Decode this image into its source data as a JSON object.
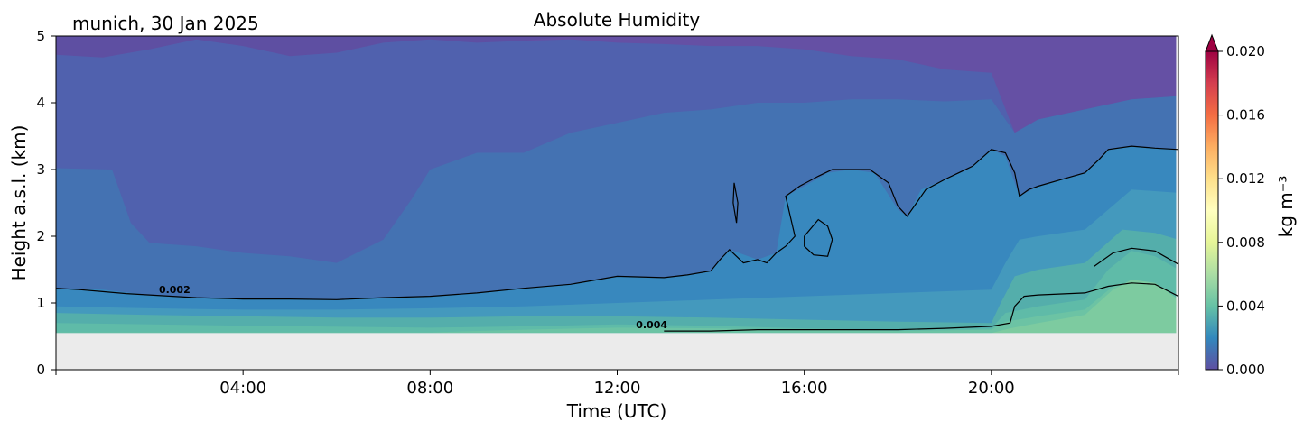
{
  "chart_data": {
    "type": "heatmap",
    "location_date": "munich, 30 Jan 2025",
    "title": "Absolute Humidity",
    "xlabel": "Time (UTC)",
    "ylabel": "Height a.s.l. (km)",
    "x_unit": "hours UTC",
    "xlim": [
      0,
      24
    ],
    "ylim": [
      0,
      5
    ],
    "x_ticks": [
      {
        "value": 4,
        "label": "04:00"
      },
      {
        "value": 8,
        "label": "08:00"
      },
      {
        "value": 12,
        "label": "12:00"
      },
      {
        "value": 16,
        "label": "16:00"
      },
      {
        "value": 20,
        "label": "20:00"
      }
    ],
    "y_ticks": [
      0,
      1,
      2,
      3,
      4,
      5
    ],
    "no_data_below_km": 0.55,
    "colorbar": {
      "label": "kg m⁻³",
      "range": [
        0.0,
        0.02
      ],
      "extend": "max",
      "ticks": [
        "0.000",
        "0.004",
        "0.008",
        "0.012",
        "0.016",
        "0.020"
      ],
      "colors": [
        "#5e4fa2",
        "#3288bd",
        "#66c2a5",
        "#abdda4",
        "#e6f598",
        "#ffffbf",
        "#fee08b",
        "#fdae61",
        "#f46d43",
        "#d53e4f",
        "#9e0142"
      ]
    },
    "contour_labels": [
      {
        "x": 2.2,
        "y": 1.15,
        "text": "0.002"
      },
      {
        "x": 12.4,
        "y": 0.62,
        "text": "0.004"
      }
    ],
    "layers": [
      {
        "value": 0.0005,
        "color": "#6550a4",
        "top": [
          [
            0,
            4.72
          ],
          [
            1,
            4.68
          ],
          [
            2,
            4.8
          ],
          [
            3,
            4.95
          ],
          [
            4,
            4.85
          ],
          [
            5,
            4.7
          ],
          [
            6,
            4.75
          ],
          [
            7,
            4.9
          ],
          [
            8,
            4.95
          ],
          [
            9,
            4.9
          ],
          [
            10,
            4.93
          ],
          [
            11,
            5.0
          ],
          [
            24,
            5.0
          ]
        ]
      },
      {
        "value": 0.001,
        "color": "#5061ae",
        "top": [
          [
            0,
            4.72
          ],
          [
            1,
            4.68
          ],
          [
            2,
            4.8
          ],
          [
            3,
            4.95
          ],
          [
            4,
            4.85
          ],
          [
            5,
            4.7
          ],
          [
            6,
            4.75
          ],
          [
            7,
            4.9
          ],
          [
            8,
            4.95
          ],
          [
            9,
            4.9
          ],
          [
            10,
            4.93
          ],
          [
            11,
            4.95
          ],
          [
            12,
            4.9
          ],
          [
            13,
            4.88
          ],
          [
            14,
            4.85
          ],
          [
            15,
            4.85
          ],
          [
            16,
            4.8
          ],
          [
            17,
            4.7
          ],
          [
            18,
            4.65
          ],
          [
            19,
            4.5
          ],
          [
            20,
            4.45
          ],
          [
            20.5,
            3.55
          ],
          [
            21,
            3.75
          ],
          [
            22,
            3.9
          ],
          [
            23,
            4.05
          ],
          [
            24,
            4.1
          ]
        ]
      },
      {
        "value": 0.0015,
        "color": "#4472b2",
        "top": [
          [
            0,
            3.02
          ],
          [
            1.2,
            3.0
          ],
          [
            1.6,
            2.2
          ],
          [
            2,
            1.9
          ],
          [
            3,
            1.85
          ],
          [
            4,
            1.75
          ],
          [
            5,
            1.7
          ],
          [
            6,
            1.6
          ],
          [
            7,
            1.95
          ],
          [
            7.6,
            2.55
          ],
          [
            8,
            3.0
          ],
          [
            9,
            3.25
          ],
          [
            10,
            3.25
          ],
          [
            11,
            3.55
          ],
          [
            12,
            3.7
          ],
          [
            13,
            3.85
          ],
          [
            14,
            3.9
          ],
          [
            15,
            4.0
          ],
          [
            16,
            4.0
          ],
          [
            17,
            4.05
          ],
          [
            18,
            4.05
          ],
          [
            19,
            4.02
          ],
          [
            20,
            4.05
          ],
          [
            20.5,
            3.55
          ],
          [
            21,
            3.75
          ],
          [
            22,
            3.9
          ],
          [
            23,
            4.05
          ],
          [
            24,
            4.1
          ]
        ]
      },
      {
        "value": 0.002,
        "color": "#3888be",
        "top": [
          [
            0,
            1.22
          ],
          [
            1,
            1.2
          ],
          [
            2,
            1.12
          ],
          [
            3,
            1.08
          ],
          [
            4,
            1.06
          ],
          [
            5,
            1.06
          ],
          [
            6,
            1.05
          ],
          [
            7,
            1.08
          ],
          [
            8,
            1.1
          ],
          [
            9,
            1.15
          ],
          [
            10,
            1.22
          ],
          [
            11,
            1.28
          ],
          [
            12,
            1.4
          ],
          [
            13,
            1.38
          ],
          [
            14,
            1.48
          ],
          [
            14.4,
            1.8
          ],
          [
            15,
            1.65
          ],
          [
            15.4,
            1.75
          ],
          [
            15.6,
            2.6
          ],
          [
            16,
            2.75
          ],
          [
            16.5,
            2.95
          ],
          [
            17,
            3.0
          ],
          [
            17.5,
            2.95
          ],
          [
            18,
            2.4
          ],
          [
            18.2,
            2.3
          ],
          [
            18.5,
            2.7
          ],
          [
            19,
            2.85
          ],
          [
            19.5,
            3.0
          ],
          [
            20,
            3.3
          ],
          [
            20.3,
            3.2
          ],
          [
            20.6,
            2.6
          ],
          [
            21,
            2.75
          ],
          [
            22,
            2.95
          ],
          [
            22.5,
            3.3
          ],
          [
            23,
            3.35
          ],
          [
            24,
            3.3
          ]
        ]
      },
      {
        "value": 0.0025,
        "color": "#4499bd",
        "top": [
          [
            0,
            0.95
          ],
          [
            2,
            0.92
          ],
          [
            4,
            0.9
          ],
          [
            6,
            0.9
          ],
          [
            8,
            0.92
          ],
          [
            10,
            0.95
          ],
          [
            12,
            1.0
          ],
          [
            14,
            1.05
          ],
          [
            16,
            1.1
          ],
          [
            18,
            1.15
          ],
          [
            20,
            1.2
          ],
          [
            20.3,
            1.6
          ],
          [
            20.6,
            1.95
          ],
          [
            21,
            2.0
          ],
          [
            22,
            2.1
          ],
          [
            23,
            2.7
          ],
          [
            24,
            2.65
          ]
        ]
      },
      {
        "value": 0.003,
        "color": "#54aeab",
        "top": [
          [
            0,
            0.85
          ],
          [
            2,
            0.82
          ],
          [
            4,
            0.8
          ],
          [
            6,
            0.78
          ],
          [
            8,
            0.78
          ],
          [
            10,
            0.8
          ],
          [
            12,
            0.8
          ],
          [
            14,
            0.78
          ],
          [
            16,
            0.75
          ],
          [
            18,
            0.72
          ],
          [
            20,
            0.7
          ],
          [
            20.2,
            1.0
          ],
          [
            20.5,
            1.4
          ],
          [
            21,
            1.5
          ],
          [
            22,
            1.6
          ],
          [
            22.8,
            2.1
          ],
          [
            23.5,
            2.05
          ],
          [
            24,
            1.95
          ]
        ]
      },
      {
        "value": 0.0035,
        "color": "#5fbba8",
        "top": [
          [
            0,
            0.7
          ],
          [
            4,
            0.66
          ],
          [
            8,
            0.63
          ],
          [
            10,
            0.65
          ],
          [
            12,
            0.68
          ],
          [
            14,
            0.66
          ],
          [
            16,
            0.62
          ],
          [
            18,
            0.6
          ],
          [
            20,
            0.62
          ],
          [
            20.3,
            0.85
          ],
          [
            21,
            0.95
          ],
          [
            22,
            1.05
          ],
          [
            22.5,
            1.5
          ],
          [
            23,
            1.78
          ],
          [
            23.5,
            1.7
          ],
          [
            24,
            1.5
          ]
        ]
      },
      {
        "value": 0.004,
        "color": "#6cc3a4",
        "top": [
          [
            0,
            0.56
          ],
          [
            8,
            0.56
          ],
          [
            10,
            0.6
          ],
          [
            12,
            0.63
          ],
          [
            14,
            0.62
          ],
          [
            16,
            0.6
          ],
          [
            18,
            0.58
          ],
          [
            20,
            0.6
          ],
          [
            20.3,
            0.72
          ],
          [
            21,
            0.8
          ],
          [
            22,
            0.9
          ],
          [
            22.6,
            1.25
          ],
          [
            23,
            1.32
          ],
          [
            23.5,
            1.3
          ],
          [
            24,
            1.05
          ]
        ]
      },
      {
        "value": 0.0045,
        "color": "#7dcba0",
        "top": [
          [
            0,
            0.55
          ],
          [
            20,
            0.55
          ],
          [
            20.4,
            0.62
          ],
          [
            21,
            0.7
          ],
          [
            22,
            0.82
          ],
          [
            22.6,
            1.2
          ],
          [
            23,
            1.35
          ],
          [
            23.5,
            1.3
          ],
          [
            24,
            1.05
          ]
        ]
      }
    ],
    "contours": [
      {
        "level": 0.002,
        "closed": false,
        "points": [
          [
            0,
            1.22
          ],
          [
            0.5,
            1.2
          ],
          [
            1,
            1.17
          ],
          [
            1.5,
            1.14
          ],
          [
            2,
            1.12
          ],
          [
            3,
            1.08
          ],
          [
            4,
            1.06
          ],
          [
            5,
            1.06
          ],
          [
            6,
            1.05
          ],
          [
            7,
            1.08
          ],
          [
            8,
            1.1
          ],
          [
            9,
            1.15
          ],
          [
            10,
            1.22
          ],
          [
            11,
            1.28
          ],
          [
            12,
            1.4
          ],
          [
            13,
            1.38
          ],
          [
            13.5,
            1.42
          ],
          [
            14,
            1.48
          ],
          [
            14.2,
            1.65
          ],
          [
            14.4,
            1.8
          ],
          [
            14.7,
            1.6
          ],
          [
            15,
            1.65
          ],
          [
            15.2,
            1.6
          ],
          [
            15.4,
            1.75
          ],
          [
            15.6,
            1.85
          ],
          [
            15.8,
            2.0
          ],
          [
            15.6,
            2.6
          ],
          [
            15.9,
            2.75
          ],
          [
            16.3,
            2.9
          ],
          [
            16.6,
            3.0
          ],
          [
            17,
            3.0
          ],
          [
            17.4,
            3.0
          ],
          [
            17.8,
            2.8
          ],
          [
            18,
            2.45
          ],
          [
            18.2,
            2.3
          ],
          [
            18.4,
            2.5
          ],
          [
            18.6,
            2.7
          ],
          [
            19,
            2.85
          ],
          [
            19.3,
            2.95
          ],
          [
            19.6,
            3.05
          ],
          [
            20,
            3.3
          ],
          [
            20.3,
            3.25
          ],
          [
            20.5,
            2.95
          ],
          [
            20.6,
            2.6
          ],
          [
            20.8,
            2.7
          ],
          [
            21,
            2.75
          ],
          [
            21.5,
            2.85
          ],
          [
            22,
            2.95
          ],
          [
            22.3,
            3.15
          ],
          [
            22.5,
            3.3
          ],
          [
            23,
            3.35
          ],
          [
            23.5,
            3.32
          ],
          [
            24,
            3.3
          ]
        ]
      },
      {
        "level": 0.002,
        "closed": true,
        "points": [
          [
            14.5,
            2.8
          ],
          [
            14.58,
            2.5
          ],
          [
            14.55,
            2.2
          ],
          [
            14.48,
            2.5
          ]
        ]
      },
      {
        "level": 0.002,
        "closed": true,
        "points": [
          [
            16.0,
            2.0
          ],
          [
            16.3,
            2.25
          ],
          [
            16.5,
            2.15
          ],
          [
            16.6,
            1.95
          ],
          [
            16.5,
            1.7
          ],
          [
            16.2,
            1.72
          ],
          [
            16.0,
            1.85
          ]
        ]
      },
      {
        "level": 0.004,
        "closed": false,
        "points": [
          [
            13,
            0.58
          ],
          [
            14,
            0.58
          ],
          [
            15,
            0.6
          ],
          [
            16,
            0.6
          ],
          [
            17,
            0.6
          ],
          [
            18,
            0.6
          ],
          [
            19,
            0.62
          ],
          [
            20,
            0.65
          ],
          [
            20.4,
            0.7
          ],
          [
            20.5,
            0.95
          ],
          [
            20.7,
            1.1
          ],
          [
            21,
            1.12
          ],
          [
            22,
            1.15
          ],
          [
            22.5,
            1.25
          ],
          [
            23,
            1.3
          ],
          [
            23.5,
            1.28
          ],
          [
            24,
            1.1
          ]
        ]
      },
      {
        "level": 0.004,
        "closed": false,
        "points": [
          [
            22.2,
            1.55
          ],
          [
            22.6,
            1.75
          ],
          [
            23,
            1.82
          ],
          [
            23.5,
            1.78
          ],
          [
            24,
            1.58
          ]
        ]
      }
    ]
  }
}
